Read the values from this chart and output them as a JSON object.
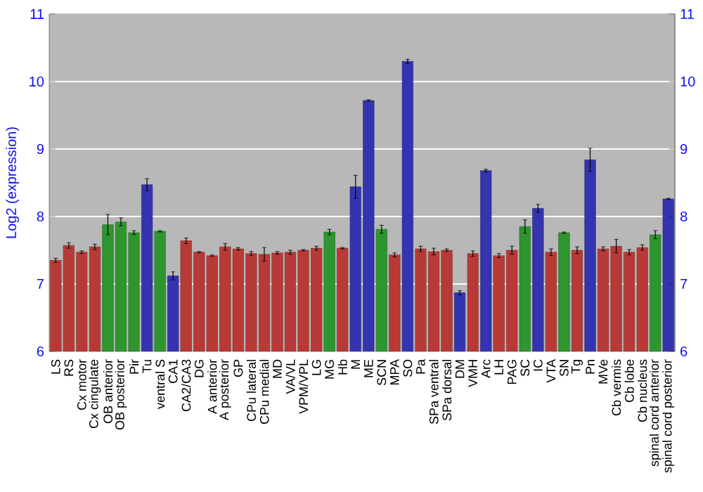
{
  "chart_data": {
    "type": "bar",
    "ylabel": "Log2 (expression)",
    "categories": [
      "LS",
      "RS",
      "Cx motor",
      "Cx cingulate",
      "OB anterior",
      "OB posterior",
      "Pir",
      "Tu",
      "ventral S",
      "CA1",
      "CA2/CA3",
      "DG",
      "A anterior",
      "A posterior",
      "GP",
      "CPu lateral",
      "CPu medial",
      "MD",
      "VA/VL",
      "VPM/VPL",
      "LG",
      "MG",
      "Hb",
      "M",
      "ME",
      "SCN",
      "MPA",
      "SO",
      "Pa",
      "SPa ventral",
      "SPa dorsal",
      "DM",
      "VMH",
      "Arc",
      "LH",
      "PAG",
      "SC",
      "IC",
      "VTA",
      "SN",
      "Tg",
      "Pn",
      "MVe",
      "Cb vermis",
      "Cb lobe",
      "Cb nucleus",
      "spinal cord anterior",
      "spinal cord posterior"
    ],
    "values": [
      7.35,
      7.57,
      7.47,
      7.55,
      7.88,
      7.92,
      7.76,
      8.47,
      7.78,
      7.12,
      7.64,
      7.47,
      7.42,
      7.55,
      7.52,
      7.45,
      7.44,
      7.46,
      7.47,
      7.5,
      7.53,
      7.77,
      7.53,
      8.44,
      9.72,
      7.81,
      7.43,
      10.3,
      7.52,
      7.48,
      7.5,
      6.87,
      7.45,
      8.68,
      7.42,
      7.5,
      7.85,
      8.12,
      7.47,
      7.76,
      7.5,
      8.84,
      7.52,
      7.56,
      7.47,
      7.54,
      7.73,
      8.26
    ],
    "errors": [
      0.03,
      0.04,
      0.02,
      0.04,
      0.15,
      0.06,
      0.03,
      0.09,
      0.01,
      0.06,
      0.04,
      0.01,
      0.01,
      0.05,
      0.02,
      0.03,
      0.1,
      0.02,
      0.03,
      0.01,
      0.03,
      0.04,
      0.01,
      0.17,
      0.01,
      0.06,
      0.03,
      0.03,
      0.04,
      0.05,
      0.02,
      0.03,
      0.04,
      0.02,
      0.03,
      0.06,
      0.1,
      0.06,
      0.05,
      0.01,
      0.05,
      0.17,
      0.03,
      0.1,
      0.04,
      0.04,
      0.06,
      0.01
    ],
    "colors": [
      "#b83a36",
      "#b83a36",
      "#b83a36",
      "#b83a36",
      "#2e962e",
      "#2e962e",
      "#2e962e",
      "#3434b0",
      "#2e962e",
      "#3434b0",
      "#b83a36",
      "#b83a36",
      "#b83a36",
      "#b83a36",
      "#b83a36",
      "#b83a36",
      "#b83a36",
      "#b83a36",
      "#b83a36",
      "#b83a36",
      "#b83a36",
      "#2e962e",
      "#b83a36",
      "#3434b0",
      "#3434b0",
      "#2e962e",
      "#b83a36",
      "#3434b0",
      "#b83a36",
      "#b83a36",
      "#b83a36",
      "#3434b0",
      "#b83a36",
      "#3434b0",
      "#b83a36",
      "#b83a36",
      "#2e962e",
      "#3434b0",
      "#b83a36",
      "#2e962e",
      "#b83a36",
      "#3434b0",
      "#b83a36",
      "#b83a36",
      "#b83a36",
      "#b83a36",
      "#2e962e",
      "#3434b0"
    ],
    "ylim": [
      6,
      11
    ],
    "yticks": [
      6,
      7,
      8,
      9,
      10,
      11
    ],
    "y2lim": [
      6,
      11
    ],
    "y2ticks": [
      6,
      7,
      8,
      9,
      10,
      11
    ],
    "grid": "y"
  }
}
